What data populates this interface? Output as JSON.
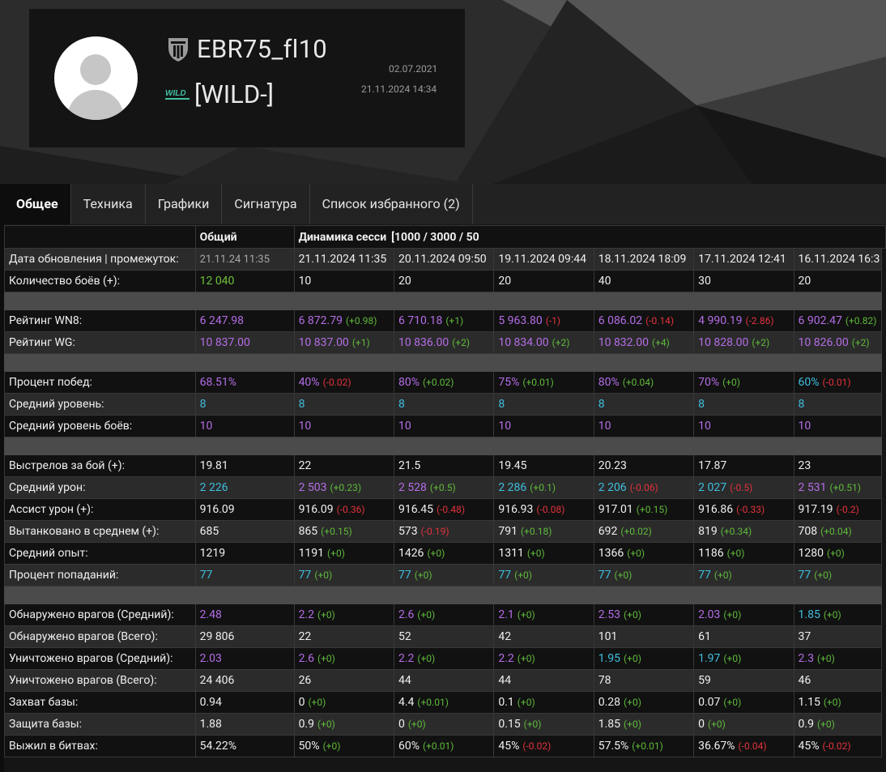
{
  "profile": {
    "player_name": "EBR75_fl10",
    "clan_tag": "[WILD-]",
    "clan_logo_text": "WILD",
    "registered_date": "02.07.2021",
    "updated_datetime": "21.11.2024 14:34"
  },
  "tabs": [
    {
      "label": "Общее",
      "active": true
    },
    {
      "label": "Техника",
      "active": false
    },
    {
      "label": "Графики",
      "active": false
    },
    {
      "label": "Сигнатура",
      "active": false
    },
    {
      "label": "Список избранного (2)",
      "active": false
    }
  ],
  "colors": {
    "purple": "#b46de6",
    "cyan": "#3fbfe0",
    "green": "#6fc23a",
    "red": "#e2323c"
  },
  "table": {
    "header": [
      "",
      "Общий",
      "Динамика сесси",
      "[1000 / 3000 / 50",
      "",
      "",
      "",
      ""
    ],
    "rows": [
      {
        "type": "row",
        "label": "Дата обновления | промежуток:",
        "cells": [
          {
            "v": "21.11.24 11:35",
            "c": "gray"
          },
          {
            "v": "21.11.2024 11:35"
          },
          {
            "v": "20.11.2024 09:50"
          },
          {
            "v": "19.11.2024 09:44"
          },
          {
            "v": "18.11.2024 18:09"
          },
          {
            "v": "17.11.2024 12:41"
          },
          {
            "v": "16.11.2024 16:3"
          }
        ]
      },
      {
        "type": "row",
        "label": "Количество боёв (+):",
        "cells": [
          {
            "v": "12 040",
            "c": "green"
          },
          {
            "v": "10"
          },
          {
            "v": "20"
          },
          {
            "v": "20"
          },
          {
            "v": "40"
          },
          {
            "v": "30"
          },
          {
            "v": "20"
          }
        ]
      },
      {
        "type": "sep"
      },
      {
        "type": "row",
        "label": "Рейтинг WN8:",
        "cells": [
          {
            "v": "6 247.98",
            "c": "purple"
          },
          {
            "v": "6 872.79",
            "c": "purple",
            "d": "(+0.98)",
            "dc": "pos"
          },
          {
            "v": "6 710.18",
            "c": "purple",
            "d": "(+1)",
            "dc": "pos"
          },
          {
            "v": "5 963.80",
            "c": "purple",
            "d": "(-1)",
            "dc": "neg"
          },
          {
            "v": "6 086.02",
            "c": "purple",
            "d": "(-0.14)",
            "dc": "neg"
          },
          {
            "v": "4 990.19",
            "c": "purple",
            "d": "(-2.86)",
            "dc": "neg"
          },
          {
            "v": "6 902.47",
            "c": "purple",
            "d": "(+0.82)",
            "dc": "pos"
          }
        ]
      },
      {
        "type": "row",
        "label": "Рейтинг WG:",
        "cells": [
          {
            "v": "10 837.00",
            "c": "purple"
          },
          {
            "v": "10 837.00",
            "c": "purple",
            "d": "(+1)",
            "dc": "pos"
          },
          {
            "v": "10 836.00",
            "c": "purple",
            "d": "(+2)",
            "dc": "pos"
          },
          {
            "v": "10 834.00",
            "c": "purple",
            "d": "(+2)",
            "dc": "pos"
          },
          {
            "v": "10 832.00",
            "c": "purple",
            "d": "(+4)",
            "dc": "pos"
          },
          {
            "v": "10 828.00",
            "c": "purple",
            "d": "(+2)",
            "dc": "pos"
          },
          {
            "v": "10 826.00",
            "c": "purple",
            "d": "(+2)",
            "dc": "pos"
          }
        ]
      },
      {
        "type": "sep"
      },
      {
        "type": "row",
        "label": "Процент побед:",
        "cells": [
          {
            "v": "68.51%",
            "c": "purple"
          },
          {
            "v": "40%",
            "c": "purple",
            "d": "(-0.02)",
            "dc": "neg"
          },
          {
            "v": "80%",
            "c": "purple",
            "d": "(+0.02)",
            "dc": "pos"
          },
          {
            "v": "75%",
            "c": "purple",
            "d": "(+0.01)",
            "dc": "pos"
          },
          {
            "v": "80%",
            "c": "purple",
            "d": "(+0.04)",
            "dc": "pos"
          },
          {
            "v": "70%",
            "c": "purple",
            "d": "(+0)",
            "dc": "pos"
          },
          {
            "v": "60%",
            "c": "cyan",
            "d": "(-0.01)",
            "dc": "neg"
          }
        ]
      },
      {
        "type": "row",
        "label": "Средний уровень:",
        "cells": [
          {
            "v": "8",
            "c": "cyan"
          },
          {
            "v": "8",
            "c": "cyan"
          },
          {
            "v": "8",
            "c": "cyan"
          },
          {
            "v": "8",
            "c": "cyan"
          },
          {
            "v": "8",
            "c": "cyan"
          },
          {
            "v": "8",
            "c": "cyan"
          },
          {
            "v": "8",
            "c": "cyan"
          }
        ]
      },
      {
        "type": "row",
        "label": "Средний уровень боёв:",
        "cells": [
          {
            "v": "10",
            "c": "purple"
          },
          {
            "v": "10",
            "c": "purple"
          },
          {
            "v": "10",
            "c": "purple"
          },
          {
            "v": "10",
            "c": "purple"
          },
          {
            "v": "10",
            "c": "purple"
          },
          {
            "v": "10",
            "c": "purple"
          },
          {
            "v": "10",
            "c": "purple"
          }
        ]
      },
      {
        "type": "sep"
      },
      {
        "type": "row",
        "label": "Выстрелов за бой (+):",
        "cells": [
          {
            "v": "19.81"
          },
          {
            "v": "22"
          },
          {
            "v": "21.5"
          },
          {
            "v": "19.45"
          },
          {
            "v": "20.23"
          },
          {
            "v": "17.87"
          },
          {
            "v": "23"
          }
        ]
      },
      {
        "type": "row",
        "label": "Средний урон:",
        "cells": [
          {
            "v": "2 226",
            "c": "cyan"
          },
          {
            "v": "2 503",
            "c": "purple",
            "d": "(+0.23)",
            "dc": "pos"
          },
          {
            "v": "2 528",
            "c": "purple",
            "d": "(+0.5)",
            "dc": "pos"
          },
          {
            "v": "2 286",
            "c": "cyan",
            "d": "(+0.1)",
            "dc": "pos"
          },
          {
            "v": "2 206",
            "c": "cyan",
            "d": "(-0.06)",
            "dc": "neg"
          },
          {
            "v": "2 027",
            "c": "cyan",
            "d": "(-0.5)",
            "dc": "neg"
          },
          {
            "v": "2 531",
            "c": "purple",
            "d": "(+0.51)",
            "dc": "pos"
          }
        ]
      },
      {
        "type": "row",
        "label": "Ассист урон (+):",
        "cells": [
          {
            "v": "916.09"
          },
          {
            "v": "916.09",
            "d": "(-0.36)",
            "dc": "neg"
          },
          {
            "v": "916.45",
            "d": "(-0.48)",
            "dc": "neg"
          },
          {
            "v": "916.93",
            "d": "(-0.08)",
            "dc": "neg"
          },
          {
            "v": "917.01",
            "d": "(+0.15)",
            "dc": "pos"
          },
          {
            "v": "916.86",
            "d": "(-0.33)",
            "dc": "neg"
          },
          {
            "v": "917.19",
            "d": "(-0.2)",
            "dc": "neg"
          }
        ]
      },
      {
        "type": "row",
        "label": "Вытанковано в среднем (+):",
        "cells": [
          {
            "v": "685"
          },
          {
            "v": "865",
            "d": "(+0.15)",
            "dc": "pos"
          },
          {
            "v": "573",
            "d": "(-0.19)",
            "dc": "neg"
          },
          {
            "v": "791",
            "d": "(+0.18)",
            "dc": "pos"
          },
          {
            "v": "692",
            "d": "(+0.02)",
            "dc": "pos"
          },
          {
            "v": "819",
            "d": "(+0.34)",
            "dc": "pos"
          },
          {
            "v": "708",
            "d": "(+0.04)",
            "dc": "pos"
          }
        ]
      },
      {
        "type": "row",
        "label": "Средний опыт:",
        "cells": [
          {
            "v": "1219"
          },
          {
            "v": "1191",
            "d": "(+0)",
            "dc": "pos"
          },
          {
            "v": "1426",
            "d": "(+0)",
            "dc": "pos"
          },
          {
            "v": "1311",
            "d": "(+0)",
            "dc": "pos"
          },
          {
            "v": "1366",
            "d": "(+0)",
            "dc": "pos"
          },
          {
            "v": "1186",
            "d": "(+0)",
            "dc": "pos"
          },
          {
            "v": "1280",
            "d": "(+0)",
            "dc": "pos"
          }
        ]
      },
      {
        "type": "row",
        "label": "Процент попаданий:",
        "cells": [
          {
            "v": "77",
            "c": "cyan"
          },
          {
            "v": "77",
            "c": "cyan",
            "d": "(+0)",
            "dc": "pos"
          },
          {
            "v": "77",
            "c": "cyan",
            "d": "(+0)",
            "dc": "pos"
          },
          {
            "v": "77",
            "c": "cyan",
            "d": "(+0)",
            "dc": "pos"
          },
          {
            "v": "77",
            "c": "cyan",
            "d": "(+0)",
            "dc": "pos"
          },
          {
            "v": "77",
            "c": "cyan",
            "d": "(+0)",
            "dc": "pos"
          },
          {
            "v": "77",
            "c": "cyan",
            "d": "(+0)",
            "dc": "pos"
          }
        ]
      },
      {
        "type": "sep"
      },
      {
        "type": "row",
        "label": "Обнаружено врагов (Средний):",
        "cells": [
          {
            "v": "2.48",
            "c": "purple"
          },
          {
            "v": "2.2",
            "c": "purple",
            "d": "(+0)",
            "dc": "pos"
          },
          {
            "v": "2.6",
            "c": "purple",
            "d": "(+0)",
            "dc": "pos"
          },
          {
            "v": "2.1",
            "c": "purple",
            "d": "(+0)",
            "dc": "pos"
          },
          {
            "v": "2.53",
            "c": "purple",
            "d": "(+0)",
            "dc": "pos"
          },
          {
            "v": "2.03",
            "c": "purple",
            "d": "(+0)",
            "dc": "pos"
          },
          {
            "v": "1.85",
            "c": "cyan",
            "d": "(+0)",
            "dc": "pos"
          }
        ]
      },
      {
        "type": "row",
        "label": "Обнаружено врагов (Всего):",
        "cells": [
          {
            "v": "29 806"
          },
          {
            "v": "22"
          },
          {
            "v": "52"
          },
          {
            "v": "42"
          },
          {
            "v": "101"
          },
          {
            "v": "61"
          },
          {
            "v": "37"
          }
        ]
      },
      {
        "type": "row",
        "label": "Уничтожено врагов (Средний):",
        "cells": [
          {
            "v": "2.03",
            "c": "purple"
          },
          {
            "v": "2.6",
            "c": "purple",
            "d": "(+0)",
            "dc": "pos"
          },
          {
            "v": "2.2",
            "c": "purple",
            "d": "(+0)",
            "dc": "pos"
          },
          {
            "v": "2.2",
            "c": "purple",
            "d": "(+0)",
            "dc": "pos"
          },
          {
            "v": "1.95",
            "c": "cyan",
            "d": "(+0)",
            "dc": "pos"
          },
          {
            "v": "1.97",
            "c": "cyan",
            "d": "(+0)",
            "dc": "pos"
          },
          {
            "v": "2.3",
            "c": "purple",
            "d": "(+0)",
            "dc": "pos"
          }
        ]
      },
      {
        "type": "row",
        "label": "Уничтожено врагов (Всего):",
        "cells": [
          {
            "v": "24 406"
          },
          {
            "v": "26"
          },
          {
            "v": "44"
          },
          {
            "v": "44"
          },
          {
            "v": "78"
          },
          {
            "v": "59"
          },
          {
            "v": "46"
          }
        ]
      },
      {
        "type": "row",
        "label": "Захват базы:",
        "cells": [
          {
            "v": "0.94"
          },
          {
            "v": "0",
            "d": "(+0)",
            "dc": "pos"
          },
          {
            "v": "4.4",
            "d": "(+0.01)",
            "dc": "pos"
          },
          {
            "v": "0.1",
            "d": "(+0)",
            "dc": "pos"
          },
          {
            "v": "0.28",
            "d": "(+0)",
            "dc": "pos"
          },
          {
            "v": "0.07",
            "d": "(+0)",
            "dc": "pos"
          },
          {
            "v": "1.15",
            "d": "(+0)",
            "dc": "pos"
          }
        ]
      },
      {
        "type": "row",
        "label": "Защита базы:",
        "cells": [
          {
            "v": "1.88"
          },
          {
            "v": "0.9",
            "d": "(+0)",
            "dc": "pos"
          },
          {
            "v": "0",
            "d": "(+0)",
            "dc": "pos"
          },
          {
            "v": "0.15",
            "d": "(+0)",
            "dc": "pos"
          },
          {
            "v": "1.85",
            "d": "(+0)",
            "dc": "pos"
          },
          {
            "v": "0",
            "d": "(+0)",
            "dc": "pos"
          },
          {
            "v": "0.9",
            "d": "(+0)",
            "dc": "pos"
          }
        ]
      },
      {
        "type": "row",
        "label": "Выжил в битвах:",
        "cells": [
          {
            "v": "54.22%"
          },
          {
            "v": "50%",
            "d": "(+0)",
            "dc": "pos"
          },
          {
            "v": "60%",
            "d": "(+0.01)",
            "dc": "pos"
          },
          {
            "v": "45%",
            "d": "(-0.02)",
            "dc": "neg"
          },
          {
            "v": "57.5%",
            "d": "(+0.01)",
            "dc": "pos"
          },
          {
            "v": "36.67%",
            "d": "(-0.04)",
            "dc": "neg"
          },
          {
            "v": "45%",
            "d": "(-0.02)",
            "dc": "neg"
          }
        ]
      }
    ]
  }
}
